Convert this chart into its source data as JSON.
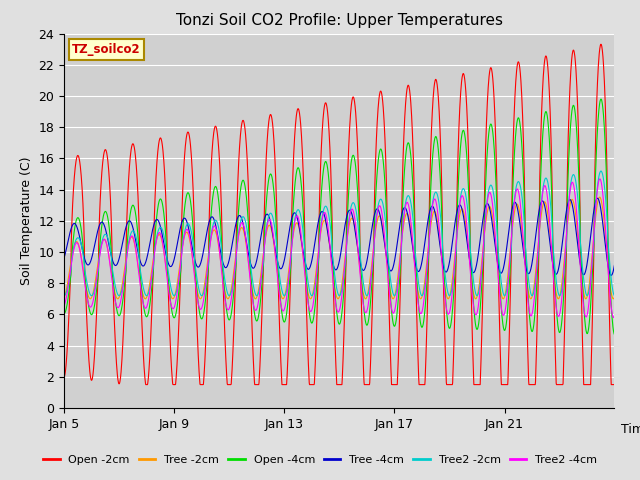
{
  "title": "Tonzi Soil CO2 Profile: Upper Temperatures",
  "ylabel": "Soil Temperature (C)",
  "xlabel": "Time",
  "watermark": "TZ_soilco2",
  "ylim": [
    0,
    24
  ],
  "fig_bg": "#e0e0e0",
  "plot_bg": "#d0d0d0",
  "series": [
    {
      "label": "Open -2cm",
      "color": "#ff0000"
    },
    {
      "label": "Tree -2cm",
      "color": "#ff9900"
    },
    {
      "label": "Open -4cm",
      "color": "#00dd00"
    },
    {
      "label": "Tree -4cm",
      "color": "#0000cc"
    },
    {
      "label": "Tree2 -2cm",
      "color": "#00cccc"
    },
    {
      "label": "Tree2 -4cm",
      "color": "#ff00ff"
    }
  ],
  "xtick_positions": [
    0,
    384,
    768,
    1152,
    1536
  ],
  "xticklabels": [
    "Jan 5",
    "Jan 9",
    "Jan 13",
    "Jan 17",
    "Jan 21"
  ],
  "yticks": [
    0,
    2,
    4,
    6,
    8,
    10,
    12,
    14,
    16,
    18,
    20,
    22,
    24
  ],
  "num_points": 1920,
  "days": 20,
  "pts_per_day": 96
}
